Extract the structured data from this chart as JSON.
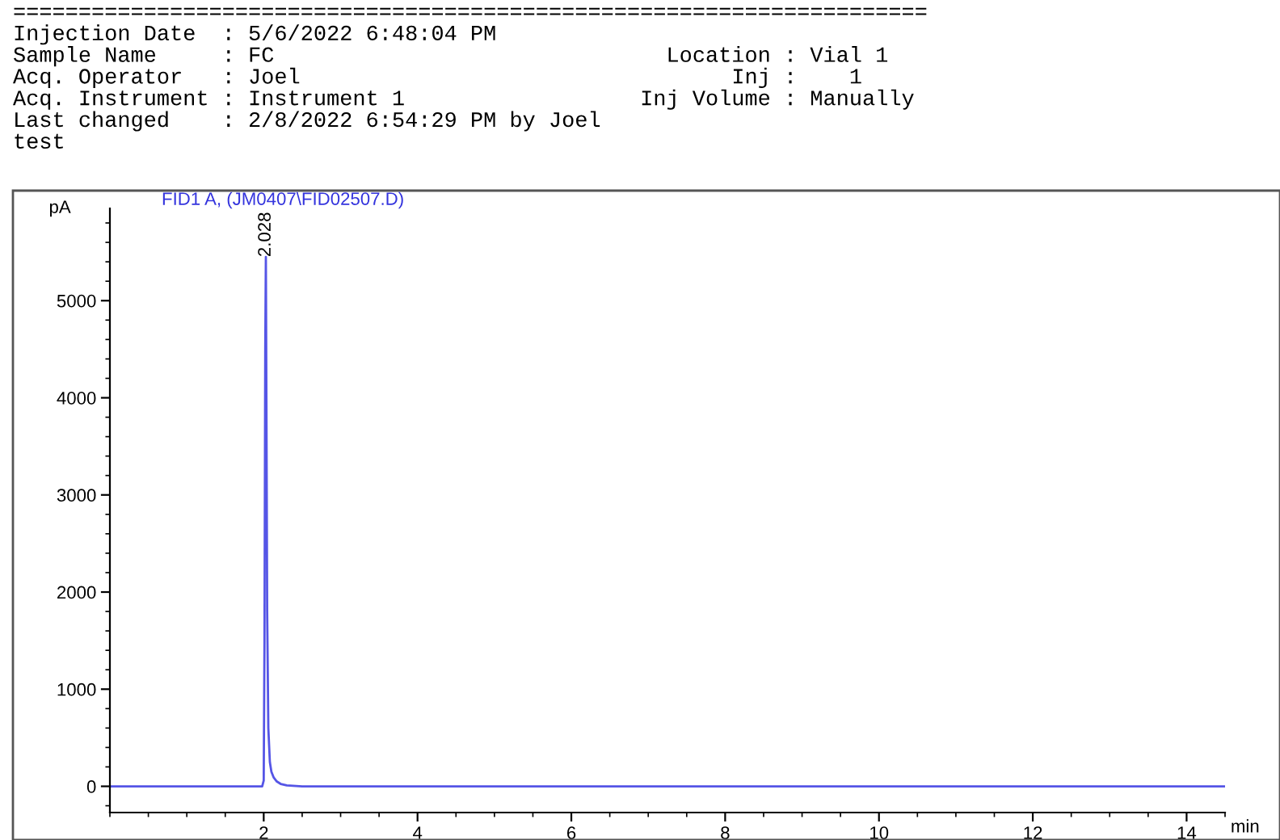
{
  "chart_data": {
    "type": "line",
    "title": "FID1 A, (JM0407\\FID02507.D)",
    "annotations": [
      "======================================================================",
      "Injection Date  : 5/6/2022 6:48:04 PM",
      "Sample Name     : FC                              Location : Vial 1",
      "Acq. Operator   : Joel                                 Inj :    1",
      "Acq. Instrument : Instrument 1                  Inj Volume : Manually",
      "Last changed    : 2/8/2022 6:54:29 PM by Joel",
      "test",
      {
        "text": "2.028",
        "x": 2.028,
        "y": 5450
      }
    ],
    "xlabel": "min",
    "ylabel": "pA",
    "series": [
      {
        "color": "#5555e6",
        "x": [
          0,
          1.9,
          1.98,
          2.0,
          2.01,
          2.02,
          2.028,
          2.035,
          2.045,
          2.06,
          2.08,
          2.1,
          2.13,
          2.17,
          2.22,
          2.3,
          2.5,
          3,
          6,
          10,
          14.5
        ],
        "values": [
          0,
          0,
          0,
          60,
          1500,
          4500,
          5450,
          4000,
          1800,
          600,
          250,
          150,
          90,
          50,
          25,
          10,
          0,
          0,
          0,
          0,
          0
        ]
      }
    ],
    "xlim": [
      0,
      14.5
    ],
    "ylim": [
      -270,
      5950
    ],
    "xticks": [
      2,
      4,
      6,
      8,
      10,
      12,
      14
    ],
    "yticks": [
      0,
      1000,
      2000,
      3000,
      4000,
      5000
    ]
  }
}
